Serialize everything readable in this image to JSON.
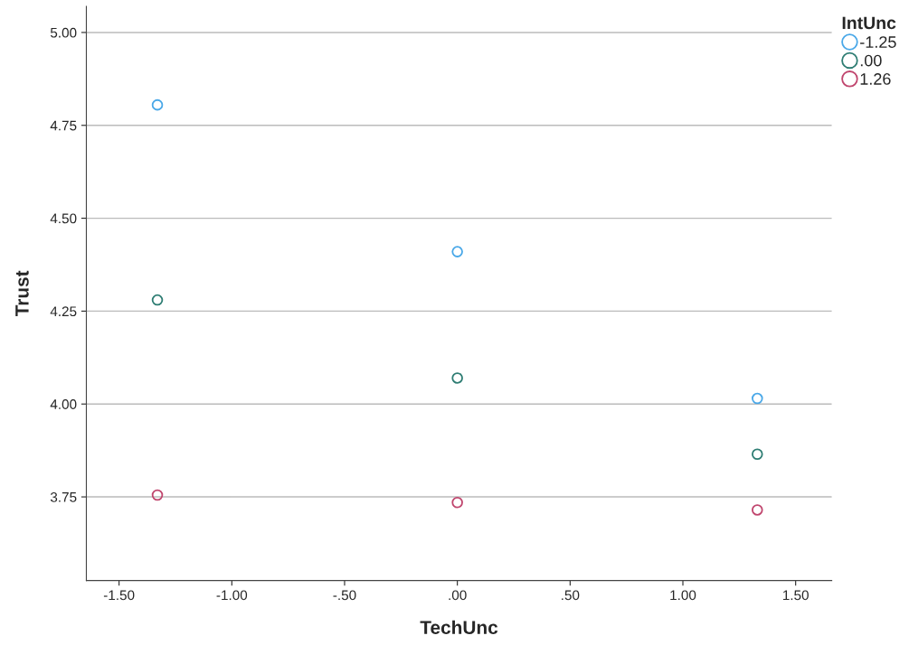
{
  "chart_data": {
    "type": "scatter",
    "xlabel": "TechUnc",
    "ylabel": "Trust",
    "legend_title": "IntUnc",
    "x": [
      -1.33,
      0,
      1.33
    ],
    "series": [
      {
        "name": "-1.25",
        "color": "#4aa8e8",
        "values": [
          4.805,
          4.41,
          4.015
        ]
      },
      {
        "name": ".00",
        "color": "#2e7d73",
        "values": [
          4.28,
          4.07,
          3.865
        ]
      },
      {
        "name": "1.26",
        "color": "#c0466e",
        "values": [
          3.755,
          3.735,
          3.715
        ]
      }
    ],
    "xlim": [
      -1.645,
      1.66
    ],
    "ylim": [
      3.525,
      5.07
    ],
    "xticks": [
      {
        "value": -1.5,
        "label": "-1.50"
      },
      {
        "value": -1.0,
        "label": "-1.00"
      },
      {
        "value": -0.5,
        "label": "-.50"
      },
      {
        "value": 0,
        "label": ".00"
      },
      {
        "value": 0.5,
        "label": ".50"
      },
      {
        "value": 1.0,
        "label": "1.00"
      },
      {
        "value": 1.5,
        "label": "1.50"
      }
    ],
    "yticks": [
      {
        "value": 3.75,
        "label": "3.75"
      },
      {
        "value": 4.0,
        "label": "4.00"
      },
      {
        "value": 4.25,
        "label": "4.25"
      },
      {
        "value": 4.5,
        "label": "4.50"
      },
      {
        "value": 4.75,
        "label": "4.75"
      },
      {
        "value": 5.0,
        "label": "5.00"
      }
    ],
    "grid": "y",
    "legend": "top right",
    "marker": "circle"
  }
}
